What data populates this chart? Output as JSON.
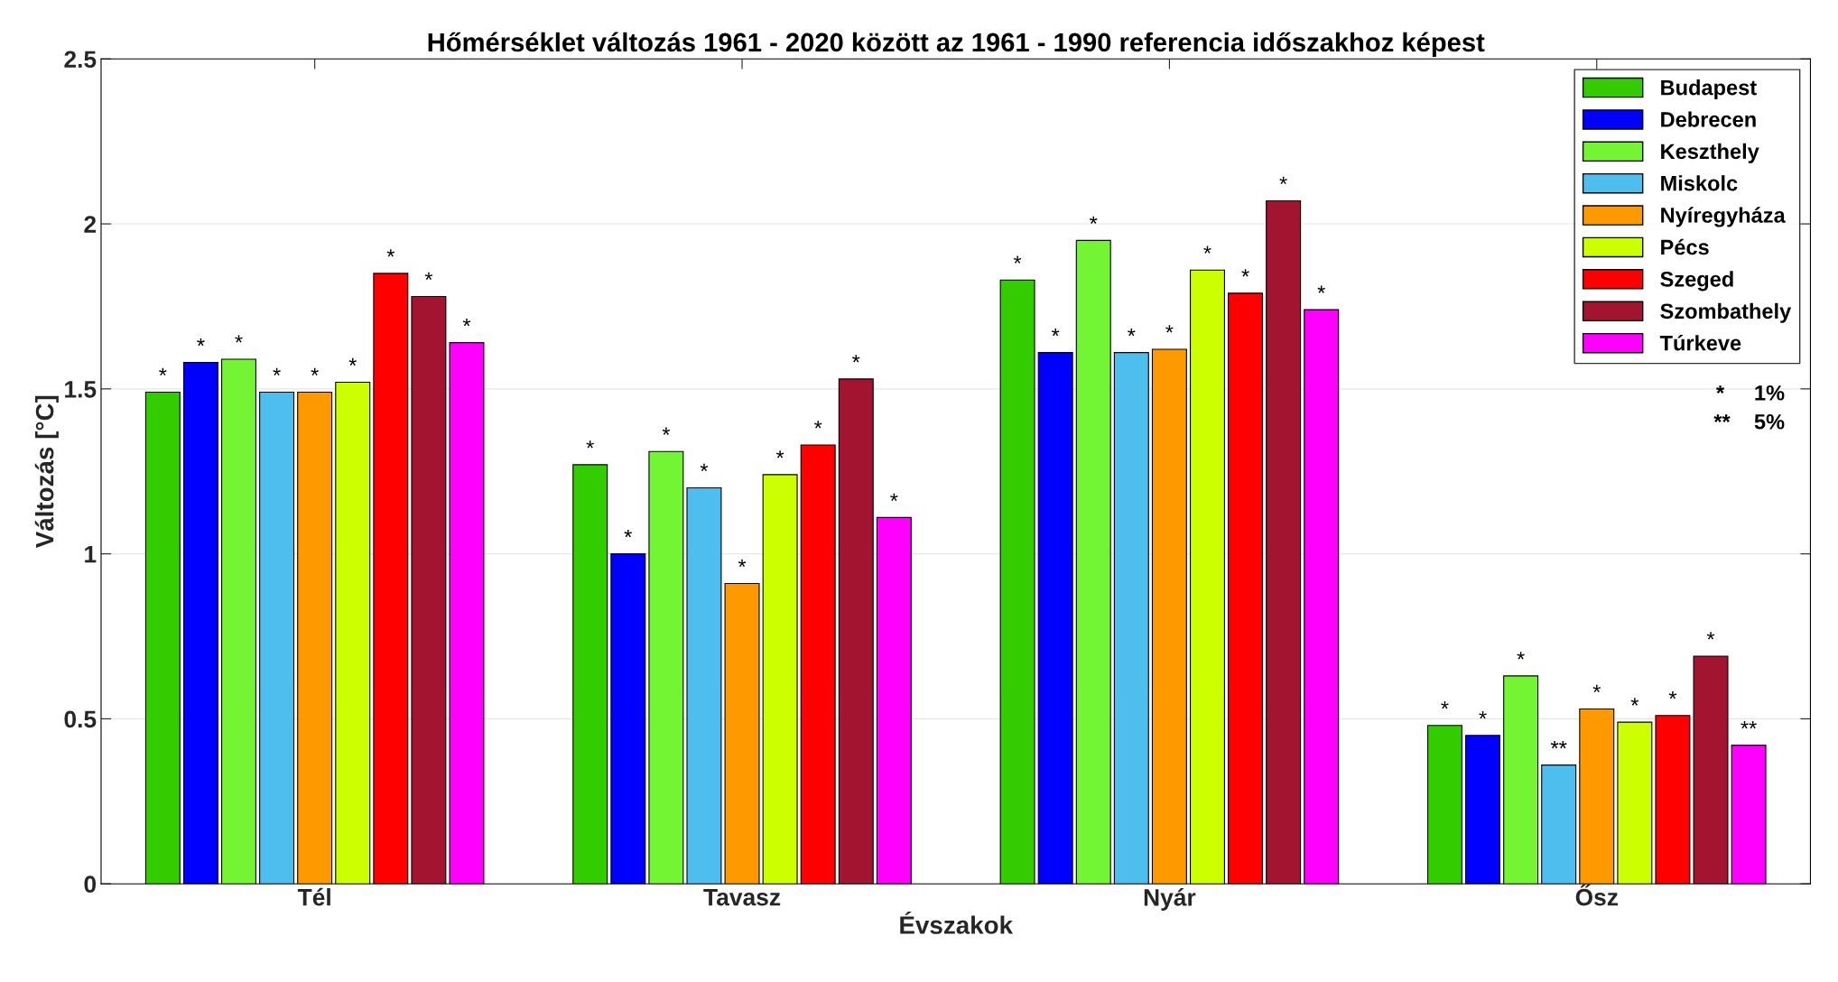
{
  "chart_data": {
    "type": "bar",
    "title": "Hőmérséklet változás 1961 - 2020 között az 1961 - 1990 referencia időszakhoz képest",
    "xlabel": "Évszakok",
    "ylabel": "Változás [°C]",
    "categories": [
      "Tél",
      "Tavasz",
      "Nyár",
      "Ősz"
    ],
    "series": [
      {
        "name": "Budapest",
        "color": "#33cc00",
        "values": [
          1.49,
          1.27,
          1.83,
          0.48
        ],
        "value_labels": [
          "*",
          "*",
          "*",
          "*"
        ]
      },
      {
        "name": "Debrecen",
        "color": "#0000ff",
        "values": [
          1.58,
          1.0,
          1.61,
          0.45
        ],
        "value_labels": [
          "*",
          "*",
          "*",
          "*"
        ]
      },
      {
        "name": "Keszthely",
        "color": "#73f533",
        "values": [
          1.59,
          1.31,
          1.95,
          0.63
        ],
        "value_labels": [
          "*",
          "*",
          "*",
          "*"
        ]
      },
      {
        "name": "Miskolc",
        "color": "#4dbeee",
        "values": [
          1.49,
          1.2,
          1.61,
          0.36
        ],
        "value_labels": [
          "*",
          "*",
          "*",
          "**"
        ]
      },
      {
        "name": "Nyíregyháza",
        "color": "#ff9900",
        "values": [
          1.49,
          0.91,
          1.62,
          0.53
        ],
        "value_labels": [
          "*",
          "*",
          "*",
          "*"
        ]
      },
      {
        "name": "Pécs",
        "color": "#ccff00",
        "values": [
          1.52,
          1.24,
          1.86,
          0.49
        ],
        "value_labels": [
          "*",
          "*",
          "*",
          "*"
        ]
      },
      {
        "name": "Szeged",
        "color": "#ff0000",
        "values": [
          1.85,
          1.33,
          1.79,
          0.51
        ],
        "value_labels": [
          "*",
          "*",
          "*",
          "*"
        ]
      },
      {
        "name": "Szombathely",
        "color": "#a2142f",
        "values": [
          1.78,
          1.53,
          2.07,
          0.69
        ],
        "value_labels": [
          "*",
          "*",
          "*",
          "*"
        ]
      },
      {
        "name": "Túrkeve",
        "color": "#ff00ff",
        "values": [
          1.64,
          1.11,
          1.74,
          0.42
        ],
        "value_labels": [
          "*",
          "*",
          "*",
          "**"
        ]
      }
    ],
    "annotations": [
      "*     1%",
      "**    5%"
    ],
    "ylim": [
      0,
      2.5
    ],
    "yticks": [
      0,
      0.5,
      1,
      1.5,
      2,
      2.5
    ],
    "grid": "y",
    "legend": "top right"
  }
}
